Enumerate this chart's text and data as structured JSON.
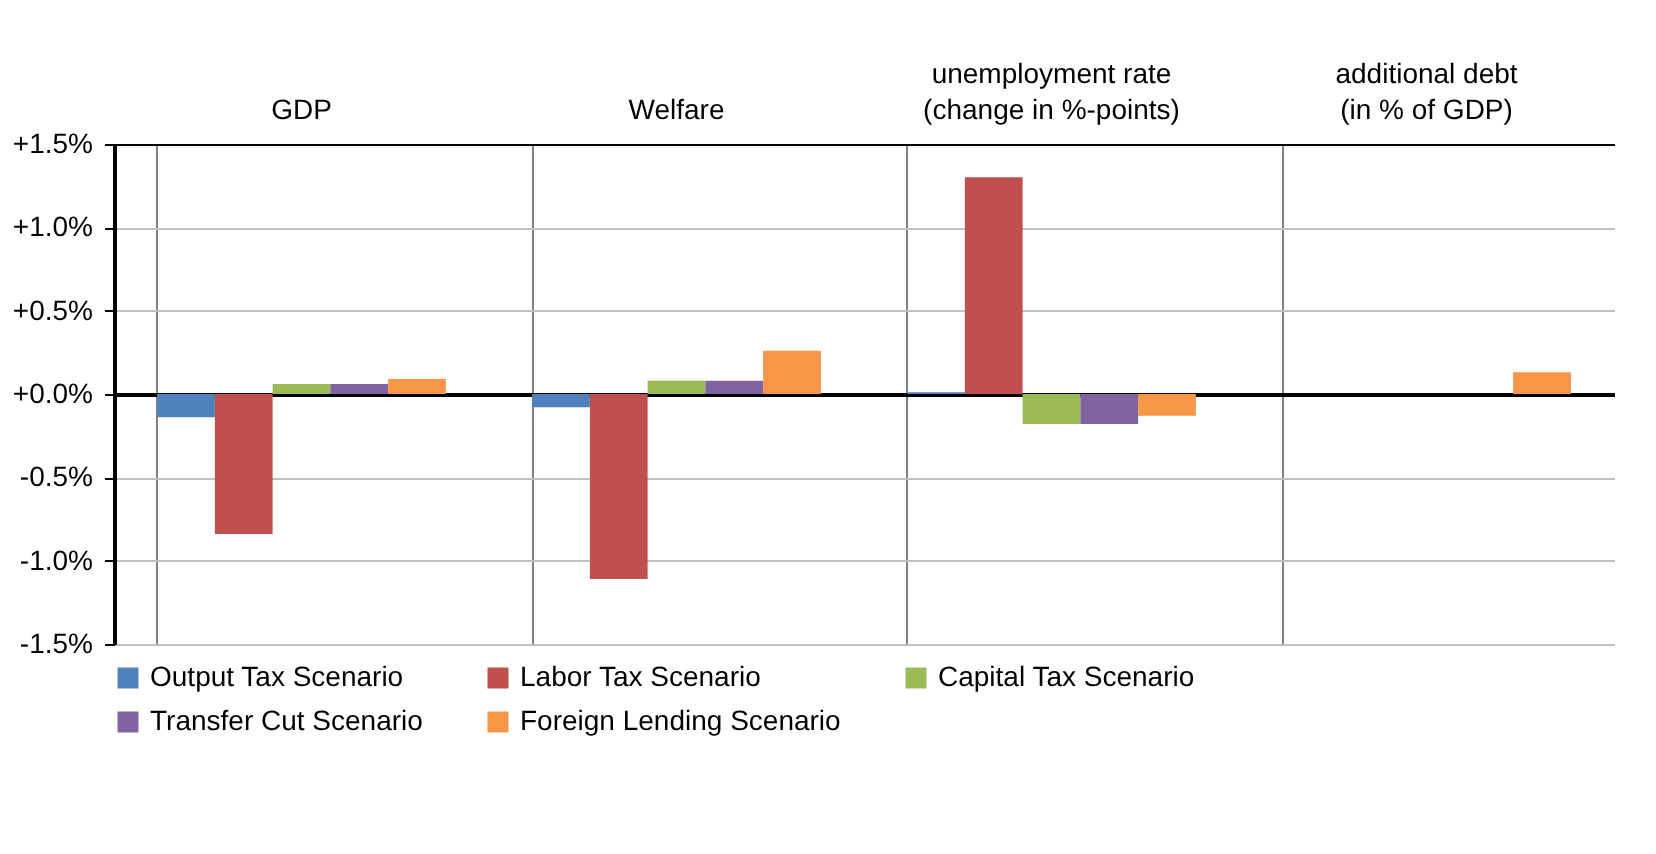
{
  "chart_data": {
    "type": "bar",
    "categories": [
      "GDP",
      "Welfare",
      "unemployment rate (change in %-points)",
      "additional debt (in % of GDP)"
    ],
    "series": [
      {
        "name": "Output Tax Scenario",
        "color": "#4f81bd",
        "values": [
          -0.14,
          -0.08,
          0.01,
          null
        ]
      },
      {
        "name": "Labor Tax Scenario",
        "color": "#c0504d",
        "values": [
          -0.84,
          -1.11,
          1.3,
          null
        ]
      },
      {
        "name": "Capital Tax Scenario",
        "color": "#9bbb59",
        "values": [
          0.06,
          0.08,
          -0.18,
          null
        ]
      },
      {
        "name": "Transfer Cut Scenario",
        "color": "#8064a2",
        "values": [
          0.06,
          0.08,
          -0.18,
          null
        ]
      },
      {
        "name": "Foreign Lending Scenario",
        "color": "#f79646",
        "values": [
          0.09,
          0.26,
          -0.13,
          0.13
        ]
      }
    ],
    "ylim": [
      -1.5,
      1.5
    ],
    "yticks": [
      {
        "value": -1.5,
        "label": "-1.5%"
      },
      {
        "value": -1,
        "label": "-1.0%"
      },
      {
        "value": -0.5,
        "label": "-0.5%"
      },
      {
        "value": 0,
        "label": "+0.0%"
      },
      {
        "value": 0.5,
        "label": "+0.5%"
      },
      {
        "value": 1,
        "label": "+1.0%"
      },
      {
        "value": 1.5,
        "label": "+1.5%"
      }
    ],
    "grid": true,
    "legend": "bottom"
  }
}
